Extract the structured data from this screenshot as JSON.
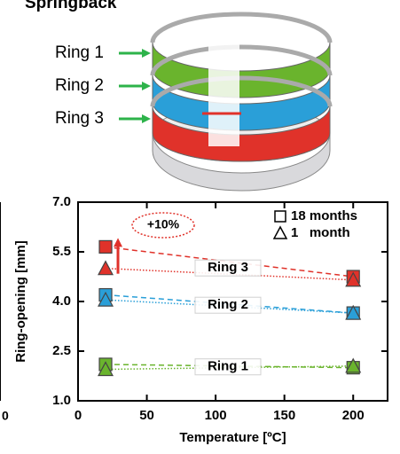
{
  "figure_title": "Springback",
  "left_panel_fragment": "0",
  "chart_data": {
    "type": "scatter-line",
    "xlabel": "Temperature [ºC]",
    "ylabel": "Ring-opening [mm]",
    "xlim": [
      0,
      225
    ],
    "ylim": [
      1,
      7
    ],
    "xticks": [
      0,
      50,
      100,
      150,
      200
    ],
    "yticks": [
      {
        "value": 1,
        "label": "1.0"
      },
      2.5,
      {
        "value": 4,
        "label": "4.0"
      },
      5.5,
      {
        "value": 7,
        "label": "7.0"
      }
    ],
    "x": [
      20,
      200
    ],
    "legend": [
      {
        "label": "18 months",
        "marker": "square",
        "dash": "dashed"
      },
      {
        "label": "1   month",
        "marker": "triangle",
        "dash": "dotted"
      }
    ],
    "rings": [
      {
        "name": "Ring 1",
        "color": "#6ab42d",
        "series": [
          {
            "values": [
              2.1,
              2.0
            ]
          },
          {
            "values": [
              1.95,
              2.05
            ]
          }
        ]
      },
      {
        "name": "Ring 2",
        "color": "#2a9fd8",
        "series": [
          {
            "values": [
              4.2,
              3.65
            ]
          },
          {
            "values": [
              4.05,
              3.65
            ]
          }
        ]
      },
      {
        "name": "Ring 3",
        "color": "#e0322a",
        "series": [
          {
            "values": [
              5.65,
              4.75
            ]
          },
          {
            "values": [
              5.0,
              4.65
            ]
          }
        ]
      }
    ],
    "annotation": "+10%"
  }
}
